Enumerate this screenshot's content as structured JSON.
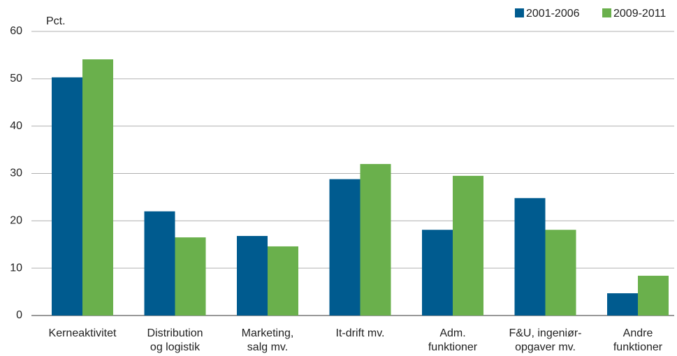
{
  "chart_data": {
    "type": "bar",
    "y_label": "Pct.",
    "categories": [
      [
        "Kerneaktivitet"
      ],
      [
        "Distribution",
        "og logistik"
      ],
      [
        "Marketing,",
        "salg mv."
      ],
      [
        "It-drift mv."
      ],
      [
        "Adm.",
        "funktioner"
      ],
      [
        "F&U, ingeniør-",
        "opgaver mv."
      ],
      [
        "Andre",
        "funktioner"
      ]
    ],
    "series": [
      {
        "name": "2001-2006",
        "color": "#005b8f",
        "values": [
          50.3,
          22.0,
          16.8,
          28.8,
          18.1,
          24.8,
          4.7
        ]
      },
      {
        "name": "2009-2011",
        "color": "#6ab04c",
        "values": [
          54.1,
          16.5,
          14.6,
          32.0,
          29.5,
          18.1,
          8.4
        ]
      }
    ],
    "ylim": [
      0,
      60
    ],
    "yticks": [
      0,
      10,
      20,
      30,
      40,
      50,
      60
    ],
    "grid": true,
    "legend": "top-right"
  }
}
